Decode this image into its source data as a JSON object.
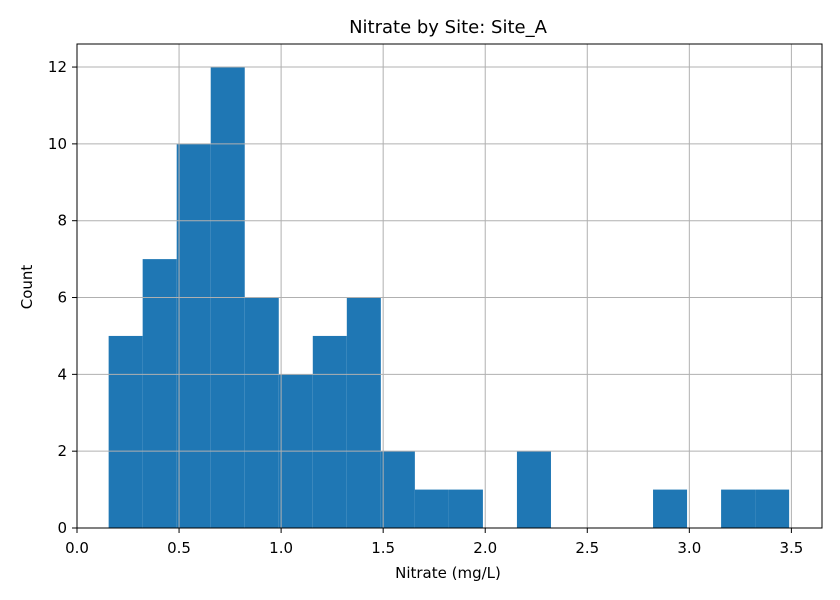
{
  "chart_data": {
    "type": "bar",
    "title": "Nitrate by Site: Site_A",
    "xlabel": "Nitrate (mg/L)",
    "ylabel": "Count",
    "xlim": [
      0.0,
      3.65
    ],
    "ylim": [
      0,
      12.6
    ],
    "x_ticks": [
      "0.0",
      "0.5",
      "1.0",
      "1.5",
      "2.0",
      "2.5",
      "3.0",
      "3.5"
    ],
    "y_ticks": [
      "0",
      "2",
      "4",
      "6",
      "8",
      "10",
      "12"
    ],
    "grid": true,
    "bar_color": "#1f77b4",
    "bin_start": 0.155,
    "bin_width": 0.1667,
    "counts": [
      5,
      7,
      10,
      12,
      6,
      4,
      5,
      6,
      2,
      1,
      1,
      0,
      2,
      0,
      0,
      0,
      1,
      0,
      1,
      1
    ]
  }
}
